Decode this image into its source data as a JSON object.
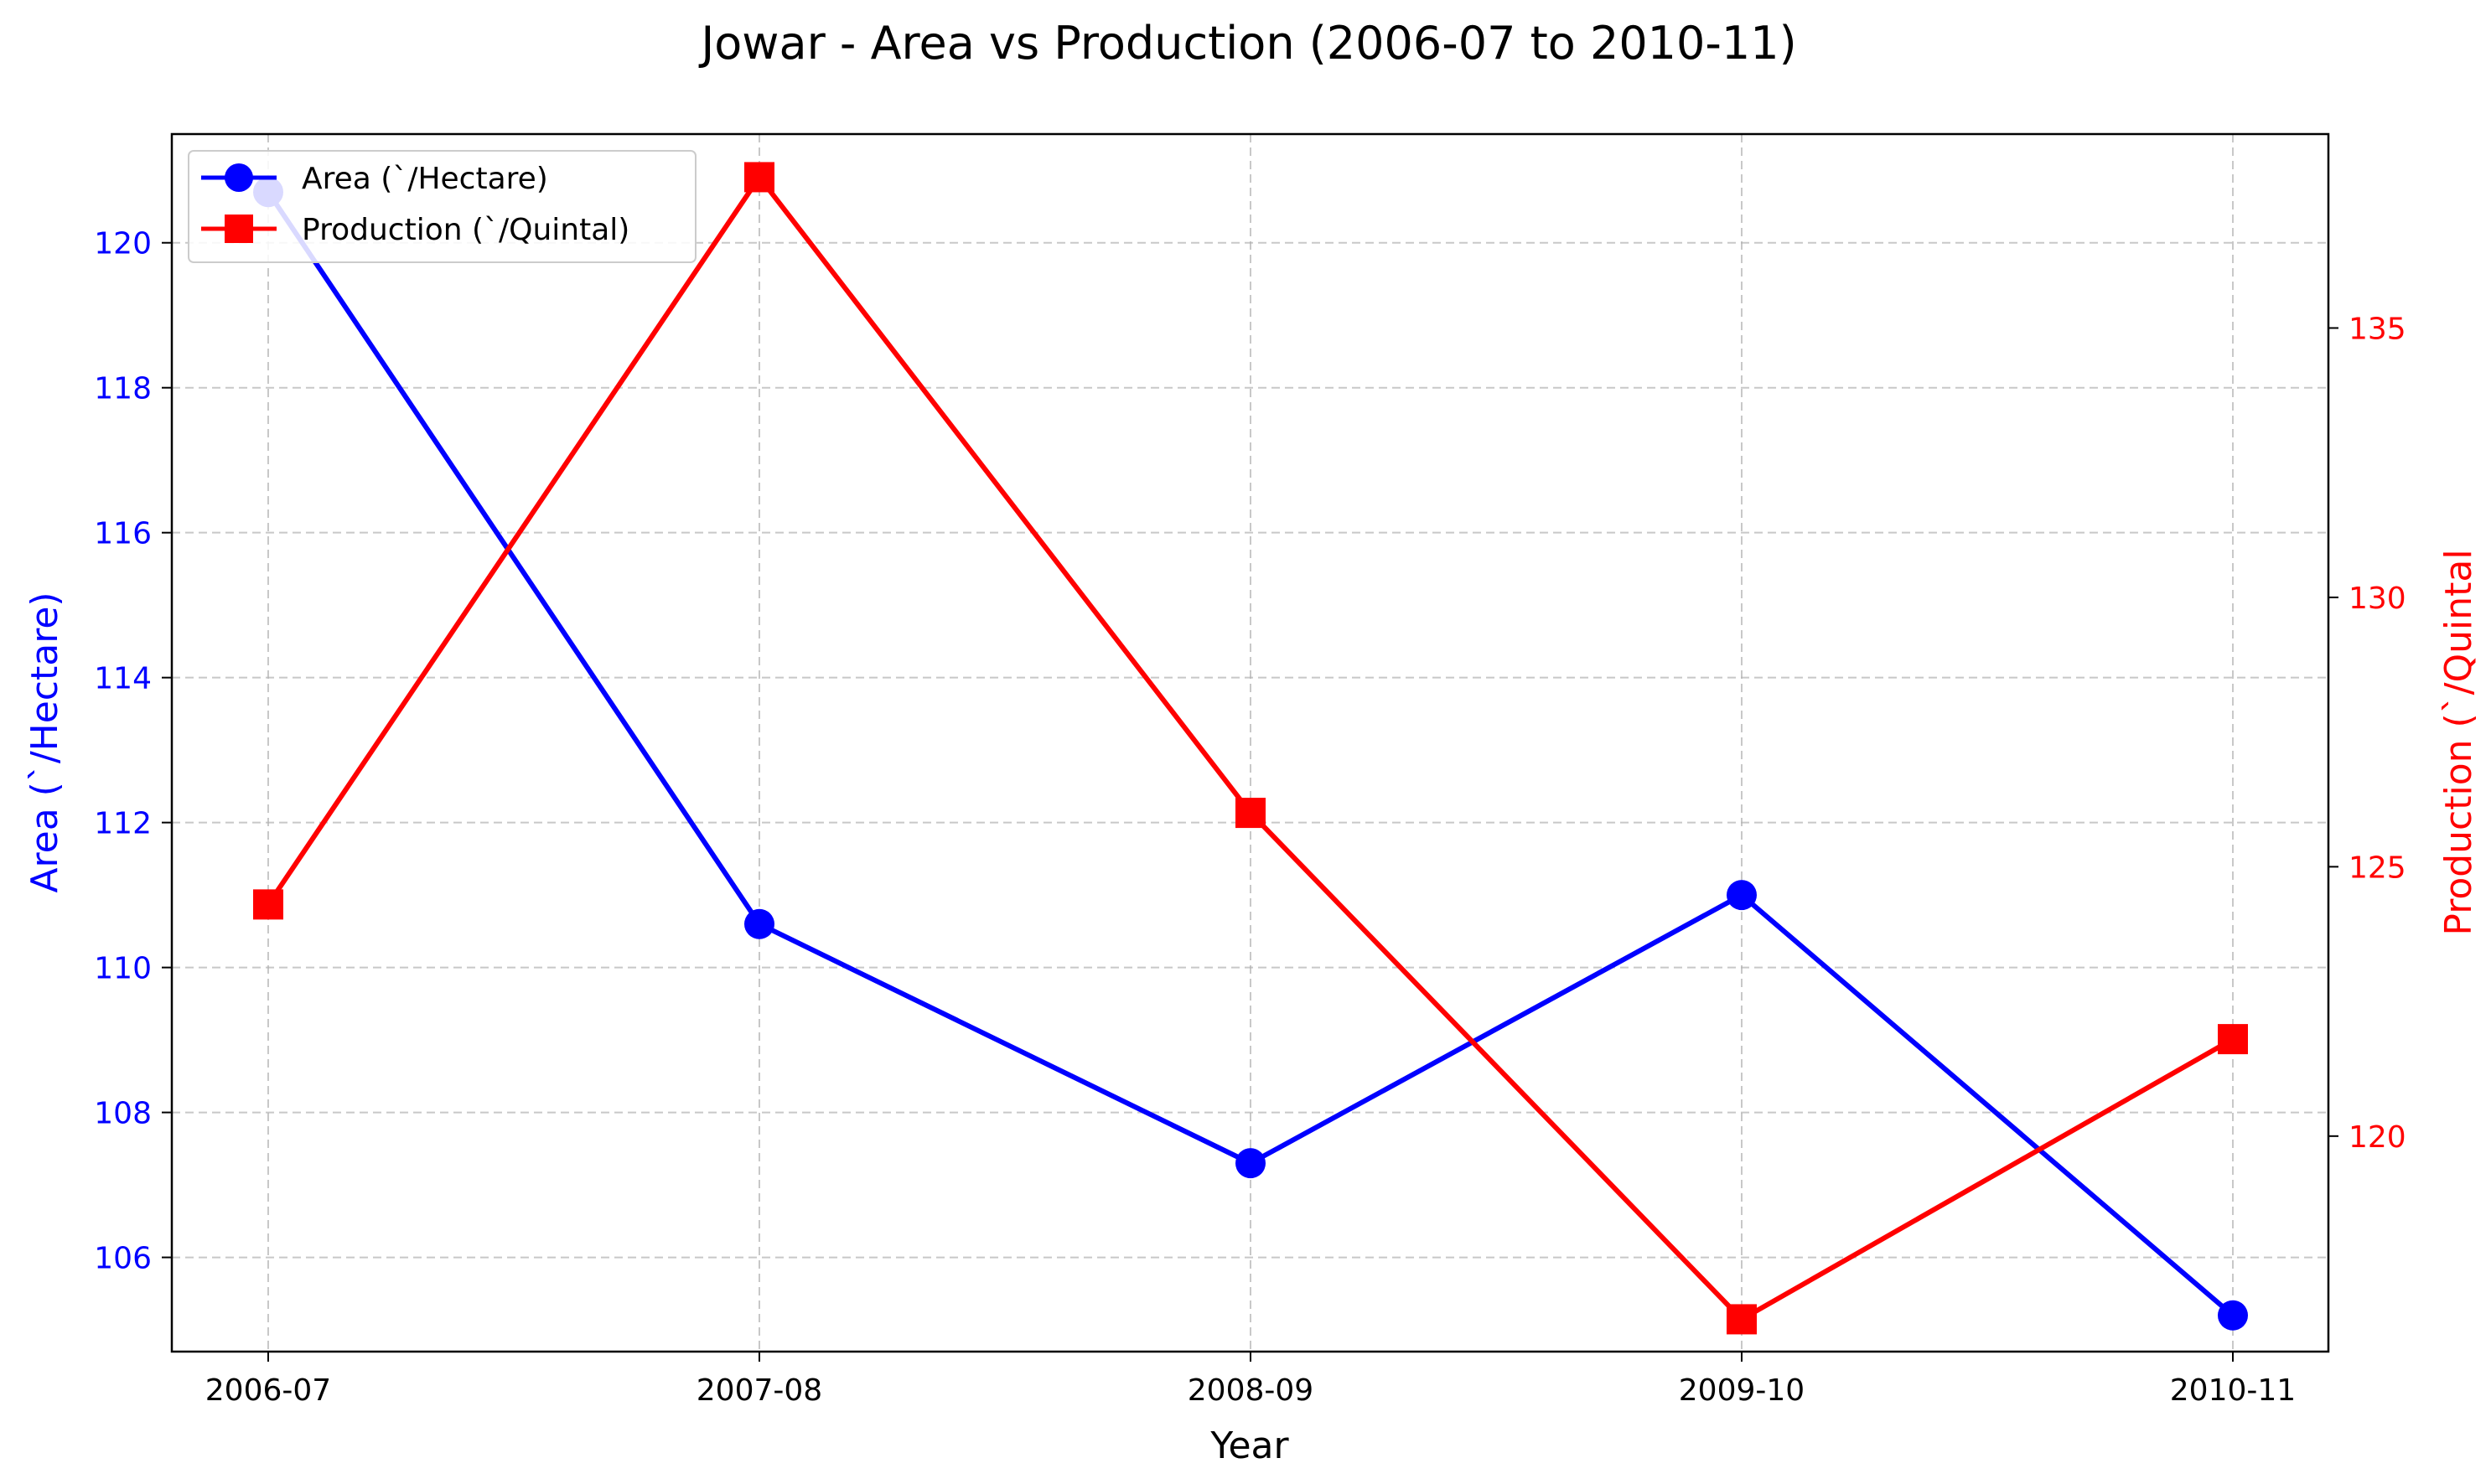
{
  "chart_data": {
    "type": "line",
    "title": "Jowar - Area vs Production (2006-07 to 2010-11)",
    "xlabel": "Year",
    "categories": [
      "2006-07",
      "2007-08",
      "2008-09",
      "2009-10",
      "2010-11"
    ],
    "y_left": {
      "label": "Area (`/Hectare)",
      "ylim": [
        104.7,
        121.5
      ],
      "ticks": [
        106,
        108,
        110,
        112,
        114,
        116,
        118,
        120
      ],
      "color": "#0000ff"
    },
    "y_right": {
      "label": "Production (`/Quintal",
      "ylim": [
        116.0,
        138.6
      ],
      "ticks": [
        120,
        125,
        130,
        135
      ],
      "color": "#ff0000"
    },
    "series": [
      {
        "name": "Area (`/Hectare)",
        "axis": "left",
        "color": "#0000ff",
        "marker": "circle",
        "values": [
          120.7,
          110.6,
          107.3,
          111.0,
          105.2
        ]
      },
      {
        "name": "Production (`/Quintal)",
        "axis": "right",
        "color": "#ff0000",
        "marker": "square",
        "values": [
          124.3,
          137.8,
          126.0,
          116.6,
          121.8
        ]
      }
    ],
    "grid": true,
    "legend_position": "top-left"
  }
}
